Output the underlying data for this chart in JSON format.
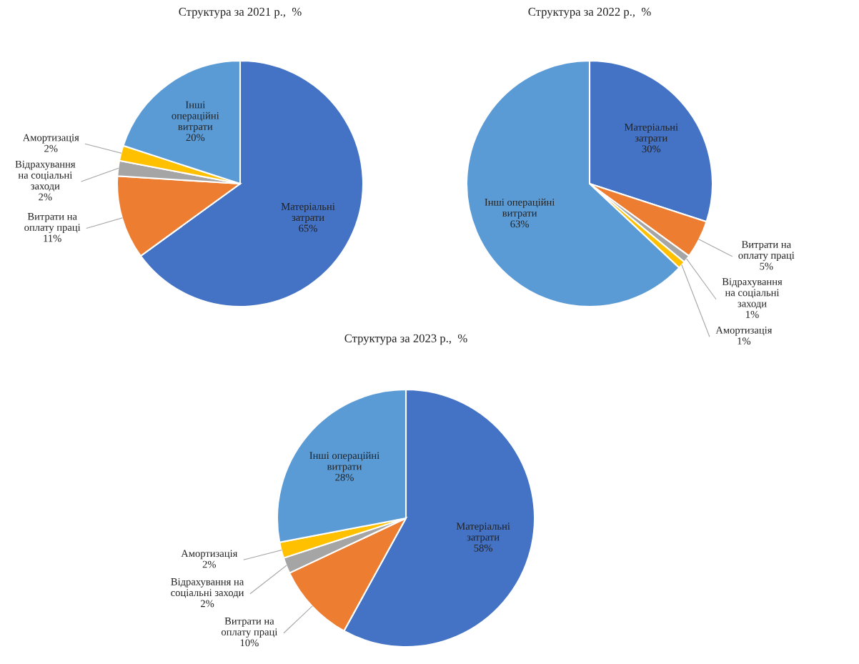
{
  "chart_data": [
    {
      "type": "pie",
      "title": "Структура за 2021 р.,  %",
      "categories": [
        "Матеріальні\nзатрати",
        "Витрати на\nоплату праці",
        "Відрахування\nна соціальні\nзаходи",
        "Амортизація",
        "Інші\nопераційні\nвитрати"
      ],
      "values": [
        65,
        11,
        2,
        2,
        20
      ],
      "value_labels": [
        "65%",
        "11%",
        "2%",
        "2%",
        "20%"
      ],
      "colors": [
        "#4472c4",
        "#ed7d31",
        "#a5a5a5",
        "#ffc000",
        "#5b9bd5"
      ]
    },
    {
      "type": "pie",
      "title": "Структура за 2022 р.,  %",
      "categories": [
        "Матеріальні\nзатрати",
        "Витрати на\nоплату праці",
        "Відрахування\nна соціальні\nзаходи",
        "Амортизація",
        "Інші операційні\nвитрати"
      ],
      "values": [
        30,
        5,
        1,
        1,
        63
      ],
      "value_labels": [
        "30%",
        "5%",
        "1%",
        "1%",
        "63%"
      ],
      "colors": [
        "#4472c4",
        "#ed7d31",
        "#a5a5a5",
        "#ffc000",
        "#5b9bd5"
      ]
    },
    {
      "type": "pie",
      "title": "Структура за 2023 р.,  %",
      "categories": [
        "Матеріальні\nзатрати",
        "Витрати на\nоплату праці",
        "Відрахування на\nсоціальні заходи",
        "Амортизація",
        "Інші операційні\nвитрати"
      ],
      "values": [
        58,
        10,
        2,
        2,
        28
      ],
      "value_labels": [
        "58%",
        "10%",
        "2%",
        "2%",
        "28%"
      ],
      "colors": [
        "#4472c4",
        "#ed7d31",
        "#a5a5a5",
        "#ffc000",
        "#5b9bd5"
      ]
    }
  ]
}
